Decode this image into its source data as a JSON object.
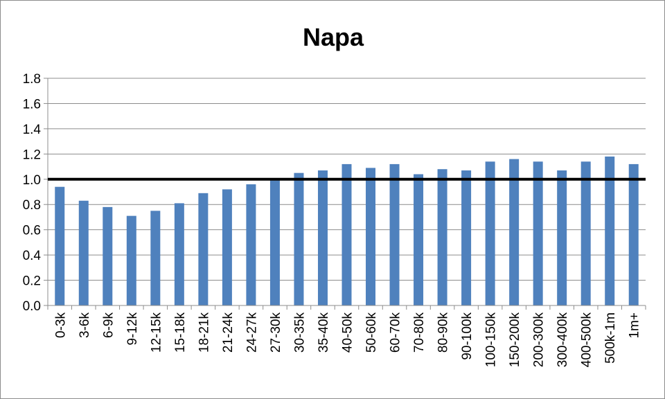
{
  "chart_data": {
    "type": "bar",
    "title": "Napa",
    "xlabel": "",
    "ylabel": "",
    "ylim": [
      0,
      1.8
    ],
    "yticks": [
      "0.0",
      "0.2",
      "0.4",
      "0.6",
      "0.8",
      "1.0",
      "1.2",
      "1.4",
      "1.6",
      "1.8"
    ],
    "grid": true,
    "reference_line": 1.0,
    "bar_color": "#4f81bd",
    "categories": [
      "0-3k",
      "3-6k",
      "6-9k",
      "9-12k",
      "12-15k",
      "15-18k",
      "18-21k",
      "21-24k",
      "24-27k",
      "27-30k",
      "30-35k",
      "35-40k",
      "40-50k",
      "50-60k",
      "60-70k",
      "70-80k",
      "80-90k",
      "90-100k",
      "100-150k",
      "150-200k",
      "200-300k",
      "300-400k",
      "400-500k",
      "500k-1m",
      "1m+"
    ],
    "values": [
      0.94,
      0.83,
      0.78,
      0.71,
      0.75,
      0.81,
      0.89,
      0.92,
      0.96,
      0.99,
      1.05,
      1.07,
      1.12,
      1.09,
      1.12,
      1.04,
      1.08,
      1.07,
      1.14,
      1.16,
      1.14,
      1.07,
      1.14,
      1.18,
      1.12
    ]
  }
}
